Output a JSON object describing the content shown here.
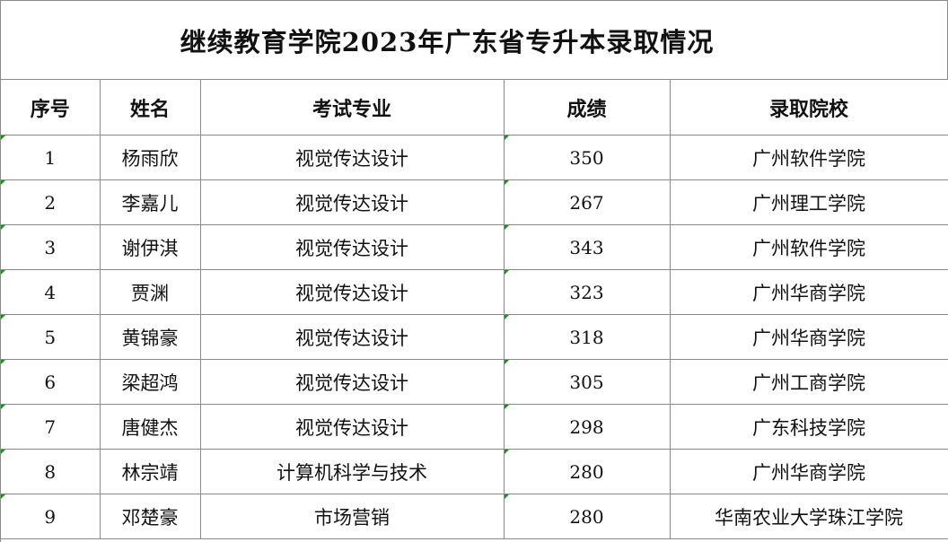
{
  "title": "继续教育学院2023年广东省专升本录取情况",
  "headers": {
    "seq": "序号",
    "name": "姓名",
    "major": "考试专业",
    "score": "成绩",
    "school": "录取院校"
  },
  "rows": [
    {
      "seq": "1",
      "name": "杨雨欣",
      "major": "视觉传达设计",
      "score": "350",
      "school": "广州软件学院"
    },
    {
      "seq": "2",
      "name": "李嘉儿",
      "major": "视觉传达设计",
      "score": "267",
      "school": "广州理工学院"
    },
    {
      "seq": "3",
      "name": "谢伊淇",
      "major": "视觉传达设计",
      "score": "343",
      "school": "广州软件学院"
    },
    {
      "seq": "4",
      "name": "贾渊",
      "major": "视觉传达设计",
      "score": "323",
      "school": "广州华商学院"
    },
    {
      "seq": "5",
      "name": "黄锦豪",
      "major": "视觉传达设计",
      "score": "318",
      "school": "广州华商学院"
    },
    {
      "seq": "6",
      "name": "梁超鸿",
      "major": "视觉传达设计",
      "score": "305",
      "school": "广州工商学院"
    },
    {
      "seq": "7",
      "name": "唐健杰",
      "major": "视觉传达设计",
      "score": "298",
      "school": "广东科技学院"
    },
    {
      "seq": "8",
      "name": "林宗靖",
      "major": "计算机科学与技术",
      "score": "280",
      "school": "广州华商学院"
    },
    {
      "seq": "9",
      "name": "邓楚豪",
      "major": "市场营销",
      "score": "280",
      "school": "华南农业大学珠江学院"
    }
  ]
}
